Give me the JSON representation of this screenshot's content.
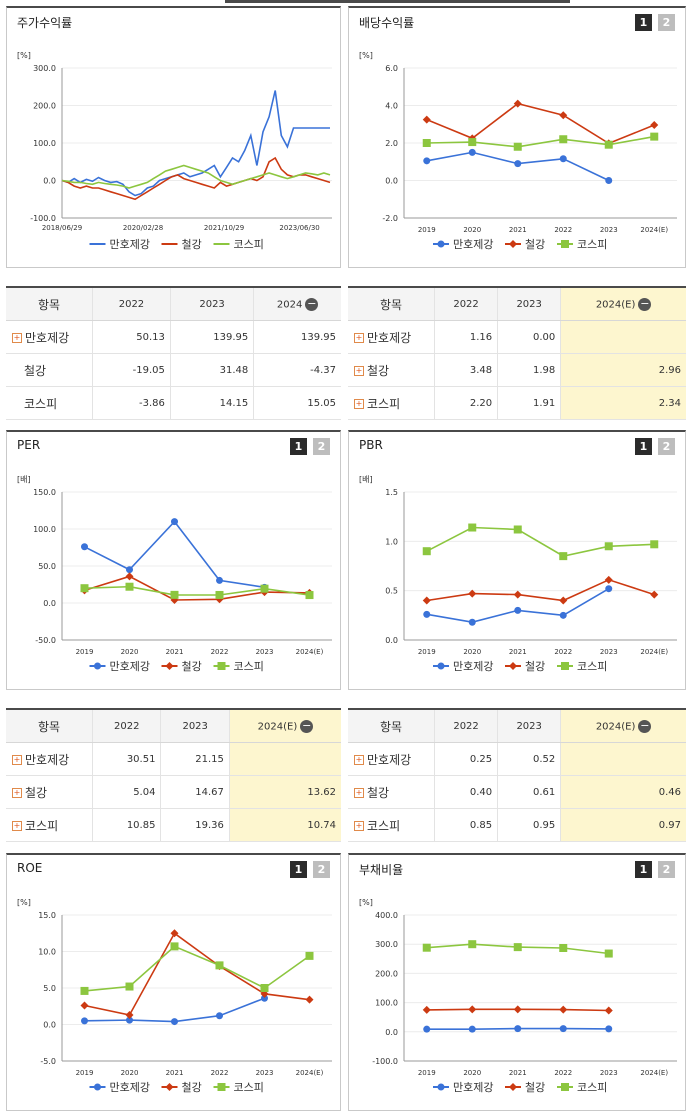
{
  "colors": {
    "manho": "#3a72d8",
    "steel": "#cc3a12",
    "kospi": "#8cc63f"
  },
  "legend": {
    "manho": "만호제강",
    "steel": "철강",
    "kospi": "코스피"
  },
  "icons": {
    "expand": "plus-box-icon",
    "collapse": "minus-circle-icon"
  },
  "pager": {
    "p1": "1",
    "p2": "2"
  },
  "panels": {
    "stock": {
      "title": "주가수익률"
    },
    "dividend": {
      "title": "배당수익률"
    },
    "per": {
      "title": "PER"
    },
    "pbr": {
      "title": "PBR"
    },
    "roe": {
      "title": "ROE"
    },
    "debt": {
      "title": "부채비율"
    }
  },
  "tables": {
    "stock": {
      "headers": [
        "항목",
        "2022",
        "2023",
        "2024"
      ],
      "rows": [
        {
          "name": "만호제강",
          "plus": true,
          "v": [
            "50.13",
            "139.95",
            "139.95"
          ]
        },
        {
          "name": "철강",
          "plus": false,
          "v": [
            "-19.05",
            "31.48",
            "-4.37"
          ]
        },
        {
          "name": "코스피",
          "plus": false,
          "v": [
            "-3.86",
            "14.15",
            "15.05"
          ]
        }
      ]
    },
    "dividend": {
      "headers": [
        "항목",
        "2022",
        "2023",
        "2024(E)"
      ],
      "rows": [
        {
          "name": "만호제강",
          "plus": true,
          "v": [
            "1.16",
            "0.00",
            ""
          ]
        },
        {
          "name": "철강",
          "plus": true,
          "v": [
            "3.48",
            "1.98",
            "2.96"
          ]
        },
        {
          "name": "코스피",
          "plus": true,
          "v": [
            "2.20",
            "1.91",
            "2.34"
          ]
        }
      ]
    },
    "per": {
      "headers": [
        "항목",
        "2022",
        "2023",
        "2024(E)"
      ],
      "rows": [
        {
          "name": "만호제강",
          "plus": true,
          "v": [
            "30.51",
            "21.15",
            ""
          ]
        },
        {
          "name": "철강",
          "plus": true,
          "v": [
            "5.04",
            "14.67",
            "13.62"
          ]
        },
        {
          "name": "코스피",
          "plus": true,
          "v": [
            "10.85",
            "19.36",
            "10.74"
          ]
        }
      ]
    },
    "pbr": {
      "headers": [
        "항목",
        "2022",
        "2023",
        "2024(E)"
      ],
      "rows": [
        {
          "name": "만호제강",
          "plus": true,
          "v": [
            "0.25",
            "0.52",
            ""
          ]
        },
        {
          "name": "철강",
          "plus": true,
          "v": [
            "0.40",
            "0.61",
            "0.46"
          ]
        },
        {
          "name": "코스피",
          "plus": true,
          "v": [
            "0.85",
            "0.95",
            "0.97"
          ]
        }
      ]
    }
  },
  "chart_data": [
    {
      "id": "stock",
      "type": "line",
      "unit": "[%]",
      "ylim": [
        -100,
        300
      ],
      "yticks": [
        "300.0",
        "200.0",
        "100.0",
        "0.0",
        "-100.0"
      ],
      "xticks": [
        "2018/06/29",
        "2020/02/28",
        "2021/10/29",
        "2023/06/30"
      ],
      "series": [
        {
          "name": "만호제강",
          "values": [
            0,
            -5,
            5,
            -5,
            3,
            -2,
            8,
            0,
            -5,
            -3,
            -10,
            -30,
            -40,
            -35,
            -20,
            -15,
            0,
            5,
            10,
            15,
            20,
            10,
            15,
            20,
            30,
            40,
            10,
            35,
            60,
            50,
            80,
            120,
            40,
            130,
            170,
            240,
            120,
            90,
            140,
            140,
            140,
            140,
            140,
            140,
            140
          ]
        },
        {
          "name": "철강",
          "values": [
            0,
            -5,
            -15,
            -20,
            -15,
            -20,
            -20,
            -25,
            -30,
            -35,
            -40,
            -45,
            -50,
            -40,
            -30,
            -20,
            -10,
            0,
            10,
            15,
            5,
            0,
            -5,
            -10,
            -15,
            -20,
            -5,
            -15,
            -10,
            -5,
            0,
            5,
            0,
            10,
            50,
            60,
            30,
            15,
            10,
            15,
            15,
            10,
            5,
            0,
            -5
          ]
        },
        {
          "name": "코스피",
          "values": [
            0,
            -2,
            -5,
            -5,
            -8,
            -10,
            -5,
            -8,
            -10,
            -12,
            -15,
            -20,
            -15,
            -10,
            -5,
            5,
            15,
            25,
            30,
            35,
            40,
            35,
            30,
            25,
            20,
            10,
            0,
            -5,
            -10,
            -5,
            0,
            5,
            10,
            15,
            20,
            15,
            10,
            5,
            10,
            15,
            20,
            18,
            15,
            20,
            15
          ]
        }
      ]
    },
    {
      "id": "dividend",
      "type": "line",
      "unit": "[%]",
      "ylim": [
        -2,
        6
      ],
      "yticks": [
        "6.0",
        "4.0",
        "2.0",
        "0.0",
        "-2.0"
      ],
      "categories": [
        "2019",
        "2020",
        "2021",
        "2022",
        "2023",
        "2024(E)"
      ],
      "series": [
        {
          "name": "만호제강",
          "values": [
            1.05,
            1.5,
            0.9,
            1.16,
            0.0,
            null
          ]
        },
        {
          "name": "철강",
          "values": [
            3.25,
            2.25,
            4.1,
            3.48,
            1.98,
            2.96
          ]
        },
        {
          "name": "코스피",
          "values": [
            2.0,
            2.05,
            1.8,
            2.2,
            1.91,
            2.34
          ]
        }
      ]
    },
    {
      "id": "per",
      "type": "line",
      "unit": "[배]",
      "ylim": [
        -50,
        150
      ],
      "yticks": [
        "150.0",
        "100.0",
        "50.0",
        "0.0",
        "-50.0"
      ],
      "categories": [
        "2019",
        "2020",
        "2021",
        "2022",
        "2023",
        "2024(E)"
      ],
      "series": [
        {
          "name": "만호제강",
          "values": [
            76,
            45,
            110,
            30.51,
            21.15,
            null
          ]
        },
        {
          "name": "철강",
          "values": [
            17,
            36,
            4,
            5.04,
            14.67,
            13.62
          ]
        },
        {
          "name": "코스피",
          "values": [
            20,
            22,
            11,
            10.85,
            19.36,
            10.74
          ]
        }
      ]
    },
    {
      "id": "pbr",
      "type": "line",
      "unit": "[배]",
      "ylim": [
        0,
        1.5
      ],
      "yticks": [
        "1.5",
        "1.0",
        "0.5",
        "0.0"
      ],
      "categories": [
        "2019",
        "2020",
        "2021",
        "2022",
        "2023",
        "2024(E)"
      ],
      "series": [
        {
          "name": "만호제강",
          "values": [
            0.26,
            0.18,
            0.3,
            0.25,
            0.52,
            null
          ]
        },
        {
          "name": "철강",
          "values": [
            0.4,
            0.47,
            0.46,
            0.4,
            0.61,
            0.46
          ]
        },
        {
          "name": "코스피",
          "values": [
            0.9,
            1.14,
            1.12,
            0.85,
            0.95,
            0.97
          ]
        }
      ]
    },
    {
      "id": "roe",
      "type": "line",
      "unit": "[%]",
      "ylim": [
        -5,
        15
      ],
      "yticks": [
        "15.0",
        "10.0",
        "5.0",
        "0.0",
        "-5.0"
      ],
      "categories": [
        "2019",
        "2020",
        "2021",
        "2022",
        "2023",
        "2024(E)"
      ],
      "series": [
        {
          "name": "만호제강",
          "values": [
            0.5,
            0.6,
            0.4,
            1.2,
            3.6,
            null
          ]
        },
        {
          "name": "철강",
          "values": [
            2.6,
            1.3,
            12.5,
            8.0,
            4.2,
            3.4
          ]
        },
        {
          "name": "코스피",
          "values": [
            4.6,
            5.2,
            10.7,
            8.1,
            5.0,
            9.4
          ]
        }
      ]
    },
    {
      "id": "debt",
      "type": "line",
      "unit": "[%]",
      "ylim": [
        -100,
        400
      ],
      "yticks": [
        "400.0",
        "300.0",
        "200.0",
        "100.0",
        "0.0",
        "-100.0"
      ],
      "categories": [
        "2019",
        "2020",
        "2021",
        "2022",
        "2023",
        "2024(E)"
      ],
      "series": [
        {
          "name": "만호제강",
          "values": [
            9,
            9,
            11,
            11,
            10,
            null
          ]
        },
        {
          "name": "철강",
          "values": [
            75,
            77,
            77,
            76,
            73,
            null
          ]
        },
        {
          "name": "코스피",
          "values": [
            288,
            300,
            290,
            287,
            268,
            null
          ]
        }
      ]
    }
  ]
}
